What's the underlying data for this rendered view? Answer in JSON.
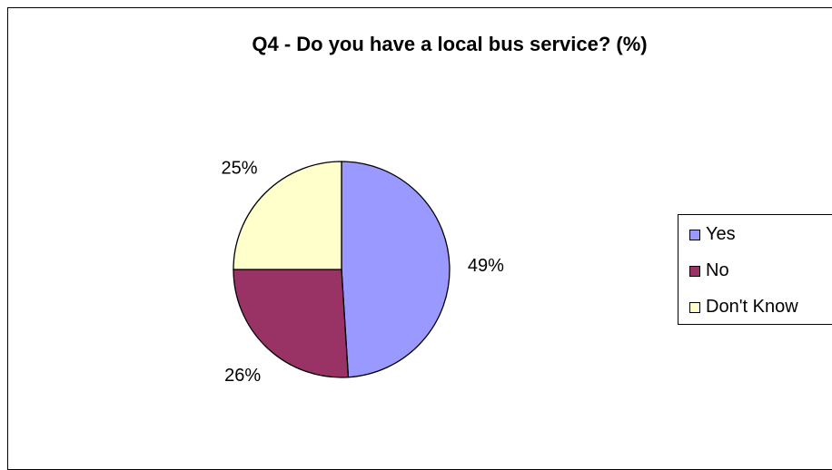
{
  "chart_data": {
    "type": "pie",
    "title": "Q4 - Do you have a local bus service? (%)",
    "categories": [
      "Yes",
      "No",
      "Don't Know"
    ],
    "values": [
      49,
      26,
      25
    ],
    "value_labels": [
      "49%",
      "26%",
      "25%"
    ],
    "colors": [
      "#9999ff",
      "#993366",
      "#ffffcc"
    ],
    "legend_position": "right"
  }
}
